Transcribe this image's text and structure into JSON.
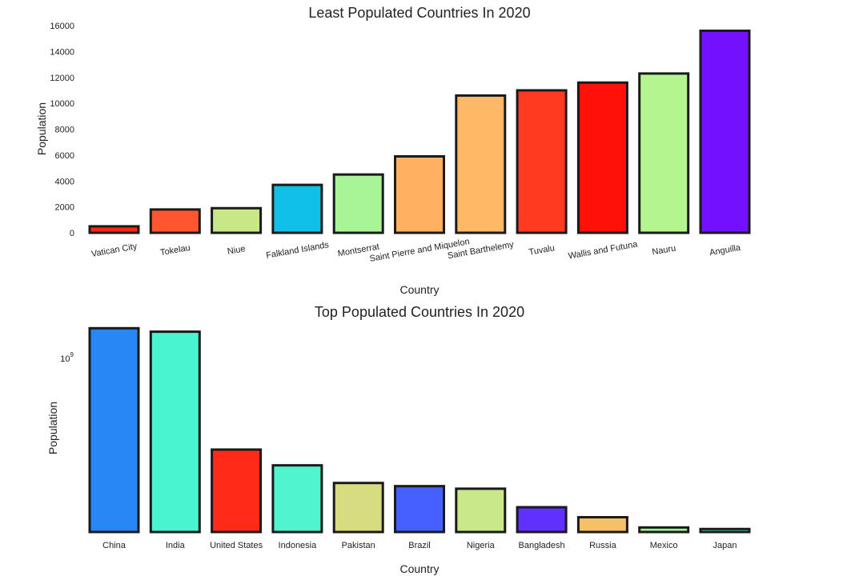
{
  "chart_data": [
    {
      "type": "bar",
      "title": "Least Populated Countries In 2020",
      "xlabel": "Country",
      "ylabel": "Population",
      "ylim": [
        0,
        16000
      ],
      "yticks": [
        0,
        2000,
        4000,
        6000,
        8000,
        10000,
        12000,
        14000,
        16000
      ],
      "ytick_labels": [
        "0",
        "2000",
        "4000",
        "6000",
        "8000",
        "10000",
        "12000",
        "14000",
        "16000"
      ],
      "scale": "linear",
      "grid": false,
      "categories": [
        "Vatican City",
        "Tokelau",
        "Niue",
        "Falkland Islands",
        "Montserrat",
        "Saint Pierre and Miquelon",
        "Saint Barthelemy",
        "Tuvalu",
        "Wallis and Futuna",
        "Nauru",
        "Anguilla"
      ],
      "values": [
        500,
        1800,
        1900,
        3700,
        4500,
        5900,
        10600,
        11000,
        11600,
        12300,
        15600
      ],
      "colors": [
        "#ff2a10",
        "#ff5530",
        "#c8e888",
        "#10c0e8",
        "#a8f598",
        "#ffb060",
        "#ffb866",
        "#ff3a20",
        "#ff1008",
        "#b4f590",
        "#7210ff"
      ]
    },
    {
      "type": "bar",
      "title": "Top Populated Countries In 2020",
      "xlabel": "Country",
      "ylabel": "Population",
      "scale": "log",
      "ylim": [
        122000000,
        1500000000
      ],
      "ytick_label": "10^9",
      "grid": false,
      "categories": [
        "China",
        "India",
        "United States",
        "Indonesia",
        "Pakistan",
        "Brazil",
        "Nigeria",
        "Bangladesh",
        "Russia",
        "Mexico",
        "Japan"
      ],
      "values": [
        1439000000,
        1380000000,
        331000000,
        273500000,
        220900000,
        212600000,
        206100000,
        164700000,
        145900000,
        128900000,
        126500000
      ],
      "colors": [
        "#2886f5",
        "#48f5d0",
        "#ff2a18",
        "#50f5d0",
        "#d8dc80",
        "#4560ff",
        "#c8e88a",
        "#6030ff",
        "#f5c068",
        "#a0f59a",
        "#60f5c0"
      ]
    }
  ]
}
